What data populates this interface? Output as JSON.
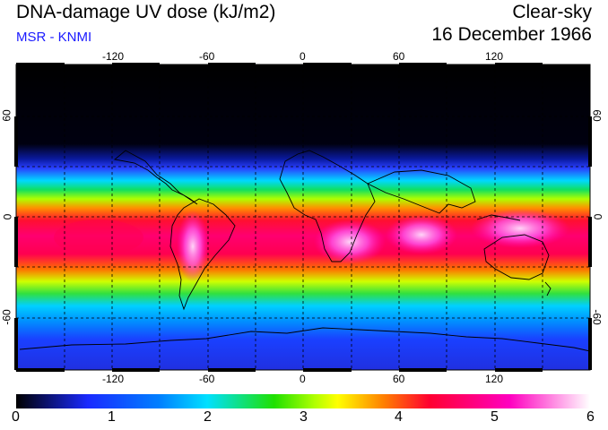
{
  "header": {
    "title": "DNA-damage UV dose (kJ/m2)",
    "source": "MSR - KNMI",
    "condition": "Clear-sky",
    "date": "16 December 1966"
  },
  "map": {
    "lon_ticks": [
      "-120",
      "-60",
      "0",
      "60",
      "120"
    ],
    "lat_ticks": [
      "60",
      "0",
      "-60"
    ]
  },
  "colorbar": {
    "min": 0,
    "max": 6,
    "labels": [
      "0",
      "1",
      "2",
      "3",
      "4",
      "5",
      "6"
    ],
    "colors": [
      "#000000",
      "#1a2aff",
      "#00e0ff",
      "#20e000",
      "#ffff00",
      "#ff8000",
      "#ff0030",
      "#ff00c0",
      "#ffffff"
    ]
  }
}
